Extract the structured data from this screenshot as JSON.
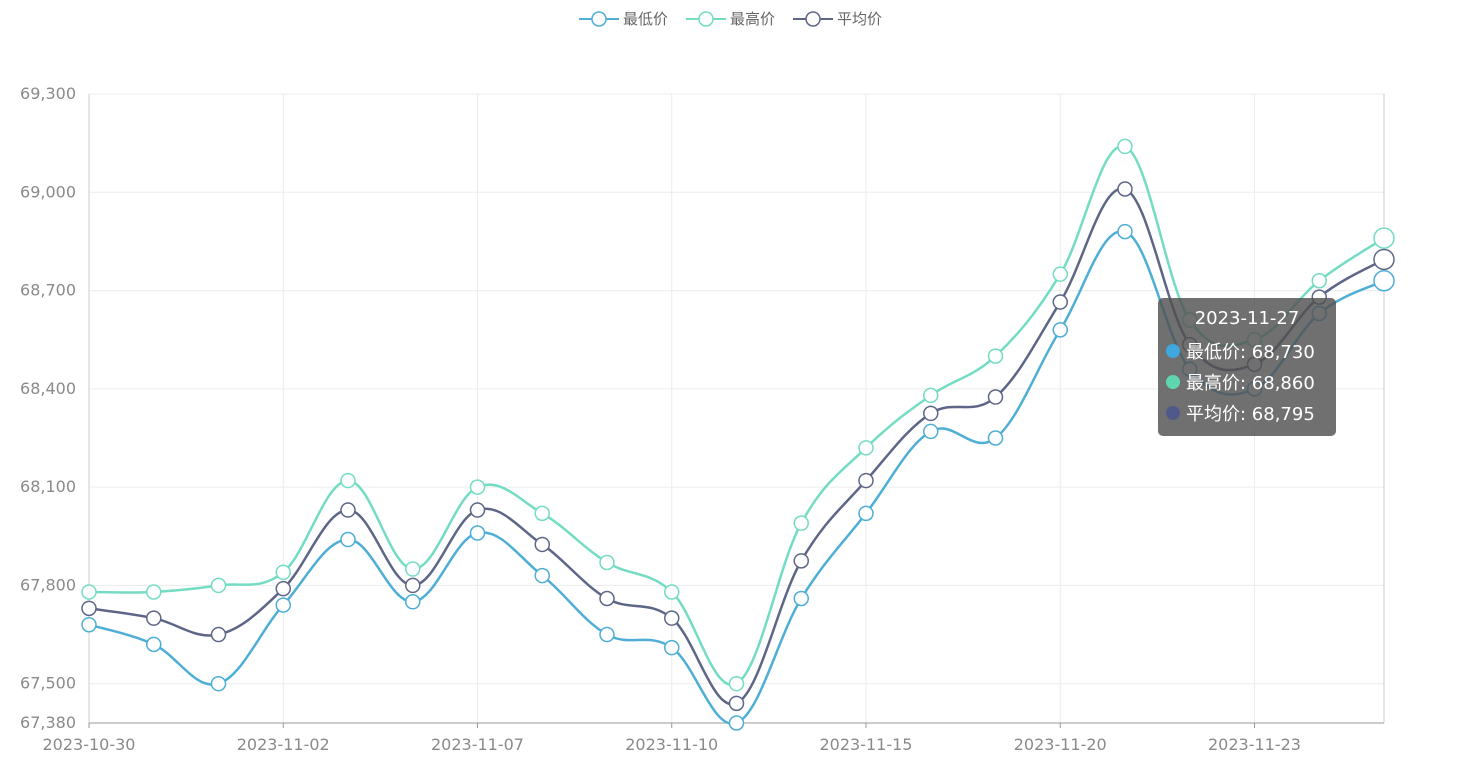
{
  "chart_data": {
    "type": "line",
    "title": "",
    "xlabel": "",
    "ylabel": "",
    "x": [
      "2023-10-30",
      "2023-10-31",
      "2023-11-01",
      "2023-11-02",
      "2023-11-03",
      "2023-11-06",
      "2023-11-07",
      "2023-11-08",
      "2023-11-09",
      "2023-11-10",
      "2023-11-13",
      "2023-11-14",
      "2023-11-15",
      "2023-11-16",
      "2023-11-17",
      "2023-11-20",
      "2023-11-21",
      "2023-11-22",
      "2023-11-23",
      "2023-11-24",
      "2023-11-27"
    ],
    "x_tick_labels": [
      "2023-10-30",
      "2023-11-02",
      "2023-11-07",
      "2023-11-10",
      "2023-11-15",
      "2023-11-20",
      "2023-11-23"
    ],
    "x_tick_indices": [
      0,
      3,
      6,
      9,
      12,
      15,
      18
    ],
    "ylim": [
      67380,
      69300
    ],
    "y_ticks": [
      67380,
      67500,
      67800,
      68100,
      68400,
      68700,
      69000,
      69300
    ],
    "y_tick_labels": [
      "67,380",
      "67,500",
      "67,800",
      "68,100",
      "68,400",
      "68,700",
      "69,000",
      "69,300"
    ],
    "grid": true,
    "legend_position": "top-center",
    "series": [
      {
        "name": "最低价",
        "color": "#4eaed6",
        "values": [
          67680,
          67620,
          67500,
          67740,
          67940,
          67750,
          67960,
          67830,
          67650,
          67610,
          67380,
          67760,
          68020,
          68270,
          68250,
          68580,
          68880,
          68460,
          68400,
          68630,
          68730
        ]
      },
      {
        "name": "最高价",
        "color": "#73dcc2",
        "values": [
          67780,
          67780,
          67800,
          67840,
          68120,
          67850,
          68100,
          68020,
          67870,
          67780,
          67500,
          67990,
          68220,
          68380,
          68500,
          68750,
          69140,
          68610,
          68550,
          68730,
          68860
        ]
      },
      {
        "name": "平均价",
        "color": "#5e6687",
        "values": [
          67730,
          67700,
          67650,
          67790,
          68030,
          67800,
          68030,
          67925,
          67760,
          67700,
          67440,
          67875,
          68120,
          68325,
          68375,
          68665,
          69010,
          68535,
          68475,
          68680,
          68795
        ]
      }
    ]
  },
  "tooltip": {
    "title": "2023-11-27",
    "rows": [
      {
        "label": "最低价: 68,730",
        "color": "#3fa7dc"
      },
      {
        "label": "最高价: 68,860",
        "color": "#5fd6b0"
      },
      {
        "label": "平均价: 68,795",
        "color": "#4f5a8a"
      }
    ]
  }
}
